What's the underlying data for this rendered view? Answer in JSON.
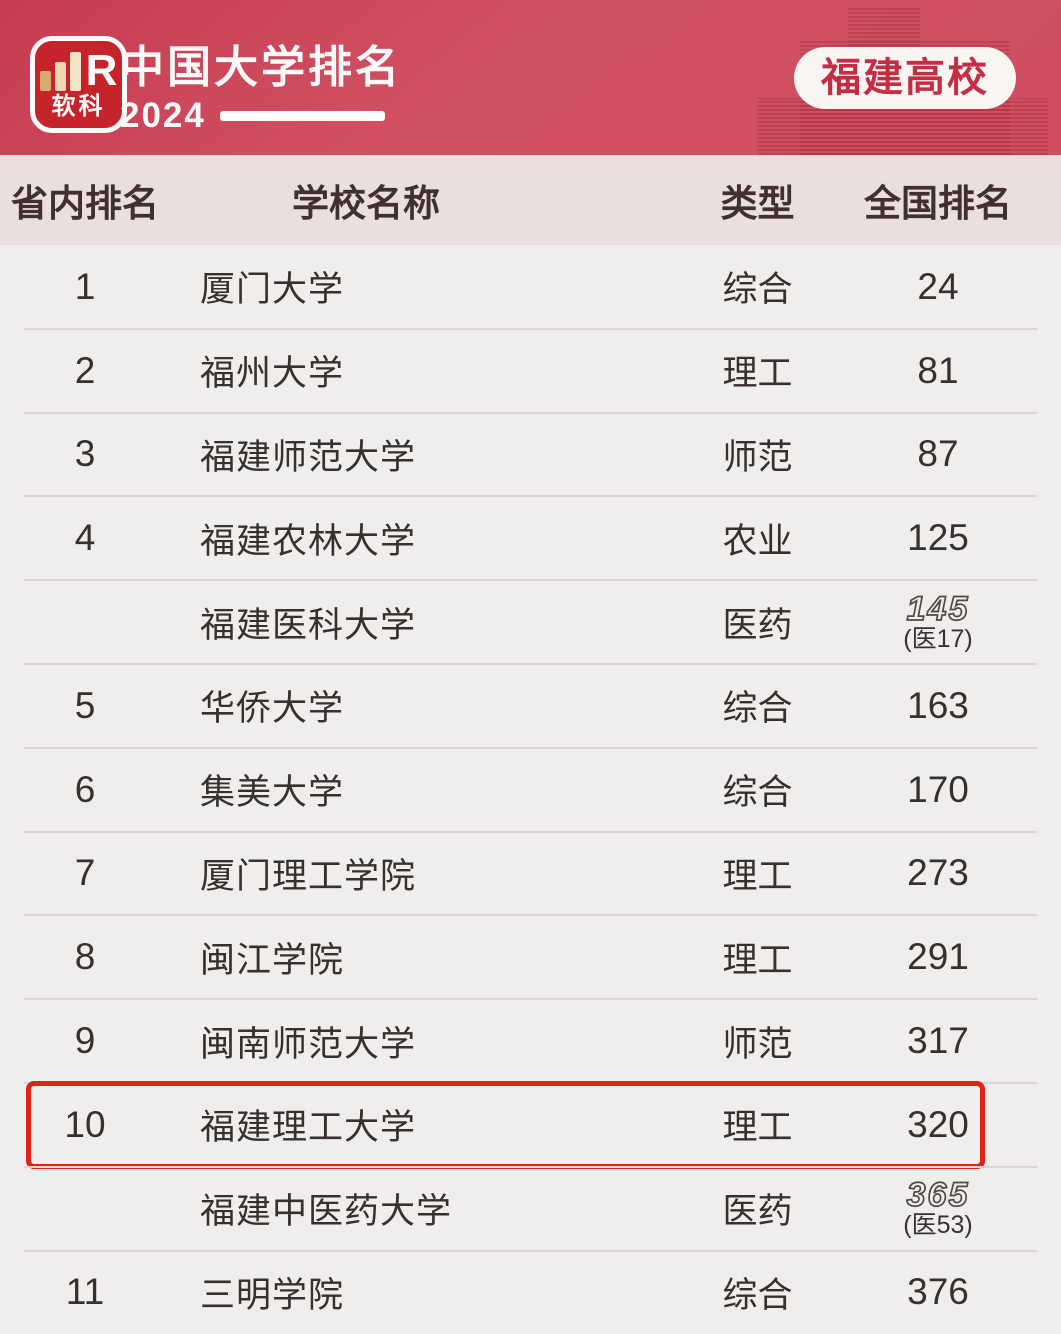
{
  "header": {
    "logo_brand": "软科",
    "logo_mark": "R",
    "title": "中国大学排名",
    "year": "2024",
    "badge_label": "福建高校"
  },
  "chart_data": {
    "type": "table",
    "title": "2024中国大学排名 福建高校",
    "columns": [
      "省内排名",
      "学校名称",
      "类型",
      "全国排名"
    ],
    "rows": [
      {
        "province_rank": "1",
        "school": "厦门大学",
        "type": "综合",
        "national_rank": "24"
      },
      {
        "province_rank": "2",
        "school": "福州大学",
        "type": "理工",
        "national_rank": "81"
      },
      {
        "province_rank": "3",
        "school": "福建师范大学",
        "type": "师范",
        "national_rank": "87"
      },
      {
        "province_rank": "4",
        "school": "福建农林大学",
        "type": "农业",
        "national_rank": "125"
      },
      {
        "province_rank": "",
        "school": "福建医科大学",
        "type": "医药",
        "national_rank": "145",
        "national_sub": "(医17)"
      },
      {
        "province_rank": "5",
        "school": "华侨大学",
        "type": "综合",
        "national_rank": "163"
      },
      {
        "province_rank": "6",
        "school": "集美大学",
        "type": "综合",
        "national_rank": "170"
      },
      {
        "province_rank": "7",
        "school": "厦门理工学院",
        "type": "理工",
        "national_rank": "273"
      },
      {
        "province_rank": "8",
        "school": "闽江学院",
        "type": "理工",
        "national_rank": "291"
      },
      {
        "province_rank": "9",
        "school": "闽南师范大学",
        "type": "师范",
        "national_rank": "317"
      },
      {
        "province_rank": "10",
        "school": "福建理工大学",
        "type": "理工",
        "national_rank": "320",
        "highlighted": true
      },
      {
        "province_rank": "",
        "school": "福建中医药大学",
        "type": "医药",
        "national_rank": "365",
        "national_sub": "(医53)"
      },
      {
        "province_rank": "11",
        "school": "三明学院",
        "type": "综合",
        "national_rank": "376"
      }
    ]
  },
  "colors": {
    "header_red": "#cf4e61",
    "logo_red": "#c5242b",
    "badge_text_red": "#c42e44",
    "band_bg": "#ebdfdd",
    "row_bg": "#f0eeed",
    "divider": "#d9d6d5",
    "text_dark": "#382f2f",
    "highlight_border": "#e0231a"
  }
}
